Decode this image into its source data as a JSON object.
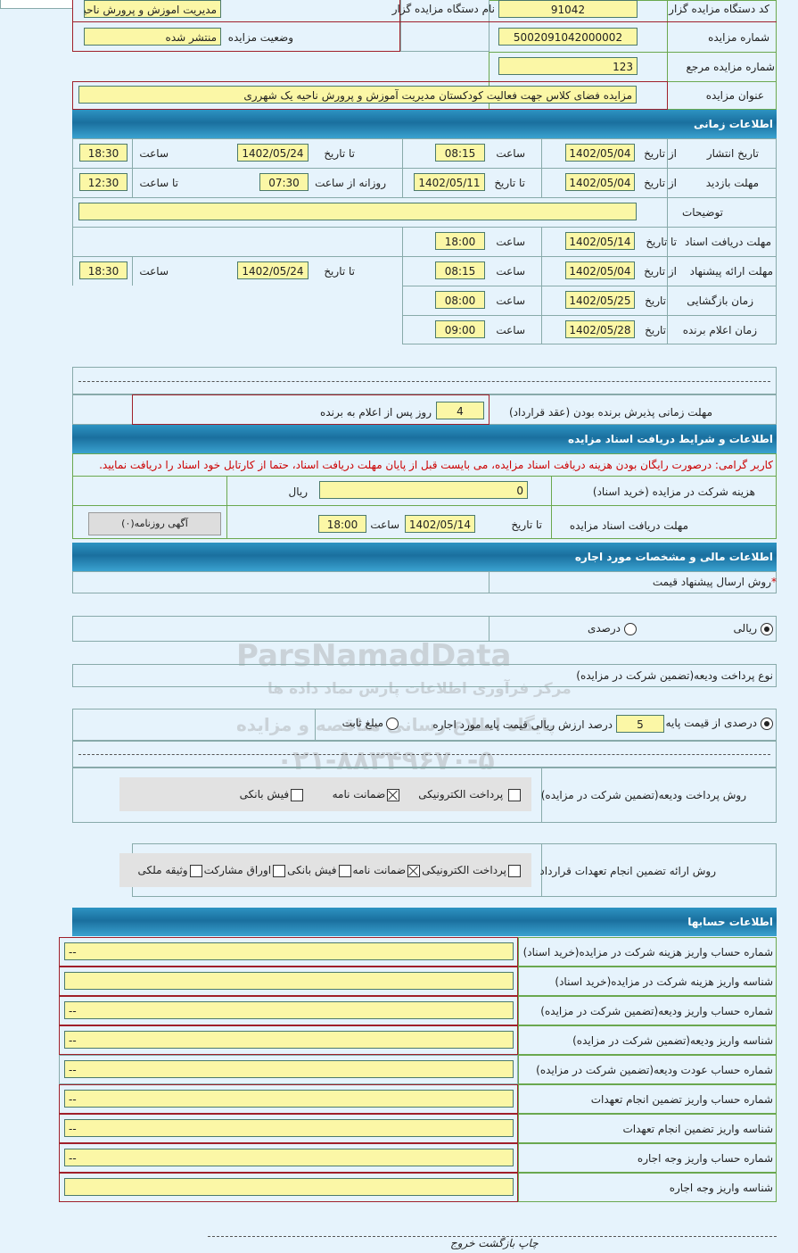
{
  "general": {
    "org_code_label": "کد دستگاه مزایده گزار",
    "org_code": "91042",
    "org_name_label": "نام دستگاه مزایده گزار",
    "org_name": "مدیریت اموزش و پرورش ناحیه",
    "auction_no_label": "شماره مزایده",
    "auction_no": "5002091042000002",
    "status_label": "وضعیت مزایده",
    "status": "منتشر شده",
    "ref_no_label": "شماره مزایده مرجع",
    "ref_no": "123",
    "title_label": "عنوان مزایده",
    "title": "مزایده فضای کلاس جهت فعالیت کودکستان مدیریت آموزش و پرورش ناحیه یک شهرری"
  },
  "time": {
    "header": "اطلاعات زمانی",
    "publish": {
      "label": "تاریخ انتشار",
      "from_label": "از تاریخ",
      "from": "1402/05/04",
      "time_label": "ساعت",
      "time": "08:15",
      "to_label": "تا تاریخ",
      "to": "1402/05/24",
      "time2_label": "ساعت",
      "time2": "18:30"
    },
    "visit": {
      "label": "مهلت بازدید",
      "from_label": "از تاریخ",
      "from": "1402/05/04",
      "to_label": "تا تاریخ",
      "to": "1402/05/11",
      "daily_label": "روزانه از ساعت",
      "daily": "07:30",
      "until_label": "تا ساعت",
      "until": "12:30"
    },
    "notes_label": "توضیحات",
    "notes": "",
    "docs": {
      "label": "مهلت دریافت اسناد",
      "to_label": "تا تاریخ",
      "to": "1402/05/14",
      "time_label": "ساعت",
      "time": "18:00"
    },
    "offer": {
      "label": "مهلت ارائه پیشنهاد",
      "from_label": "از تاریخ",
      "from": "1402/05/04",
      "time_label": "ساعت",
      "time": "08:15",
      "to_label": "تا تاریخ",
      "to": "1402/05/24",
      "time2_label": "ساعت",
      "time2": "18:30"
    },
    "opening": {
      "label": "زمان بازگشایی",
      "date_label": "تاریخ",
      "date": "1402/05/25",
      "time_label": "ساعت",
      "time": "08:00"
    },
    "winner": {
      "label": "زمان اعلام برنده",
      "date_label": "تاریخ",
      "date": "1402/05/28",
      "time_label": "ساعت",
      "time": "09:00"
    },
    "accept_label": "مهلت زمانی پذیرش برنده بودن (عقد قرارداد)",
    "accept_days": "4",
    "accept_suffix": "روز پس از اعلام به برنده"
  },
  "docs_info": {
    "header": "اطلاعات و شرایط دریافت اسناد مزایده",
    "notice": "کاربر گرامی: درصورت رایگان بودن هزینه دریافت اسناد مزایده، می بایست قبل از پایان مهلت دریافت اسناد، حتما از کارتابل خود اسناد را دریافت نمایید.",
    "fee_label": "هزینه شرکت در مزایده (خرید اسناد)",
    "fee": "0",
    "fee_unit": "ریال",
    "deadline_label": "مهلت دریافت اسناد مزایده",
    "to_label": "تا تاریخ",
    "to": "1402/05/14",
    "time_label": "ساعت",
    "time": "18:00",
    "newspaper_button": "آگهی روزنامه(۰)"
  },
  "finance": {
    "header": "اطلاعات مالی و مشخصات مورد اجاره",
    "method_label": "روش ارسال پیشنهاد قیمت",
    "required_mark": "*",
    "rial_label": "ریالی",
    "percent_label": "درصدی",
    "deposit_type_label": "نوع پرداخت ودیعه(تضمین شرکت در مزایده)",
    "deposit_percent_label": "درصدی از قیمت پایه",
    "deposit_percent": "5",
    "deposit_percent_suffix": "درصد ارزش ریالی قیمت پایه مورد اجاره",
    "fixed_label": "مبلغ ثابت",
    "deposit_methods_label": "روش پرداخت ودیعه(تضمین شرکت در مزایده)",
    "deposit_methods": [
      {
        "label": "پرداخت الکترونیکی",
        "checked": false
      },
      {
        "label": "ضمانت نامه",
        "checked": true
      },
      {
        "label": "فیش بانکی",
        "checked": false
      }
    ],
    "guarantee_label": "روش ارائه تضمین انجام تعهدات قرارداد",
    "guarantee_methods": [
      {
        "label": "پرداخت الکترونیکی",
        "checked": false
      },
      {
        "label": "ضمانت نامه",
        "checked": true
      },
      {
        "label": "فیش بانکی",
        "checked": false
      },
      {
        "label": "اوراق مشارکت",
        "checked": false
      },
      {
        "label": "وثیقه ملکی",
        "checked": false
      }
    ]
  },
  "accounts": {
    "header": "اطلاعات حسابها",
    "rows": [
      {
        "label": "شماره حساب واریز هزینه شرکت در مزایده(خرید اسناد)",
        "value": "--"
      },
      {
        "label": "شناسه واریز هزینه شرکت در مزایده(خرید اسناد)",
        "value": ""
      },
      {
        "label": "شماره حساب واریز ودیعه(تضمین شرکت در مزایده)",
        "value": "--"
      },
      {
        "label": "شناسه واریز ودیعه(تضمین شرکت در مزایده)",
        "value": "--"
      },
      {
        "label": "شماره حساب عودت ودیعه(تضمین شرکت در مزایده)",
        "value": "--"
      },
      {
        "label": "شماره حساب واریز تضمین انجام تعهدات",
        "value": "--"
      },
      {
        "label": "شناسه واریز تضمین انجام تعهدات",
        "value": "--"
      },
      {
        "label": "شماره حساب واریز وجه اجاره",
        "value": "--"
      },
      {
        "label": "شناسه واریز وجه اجاره",
        "value": ""
      }
    ]
  },
  "footer": {
    "print": "چاپ",
    "back": "بازگشت",
    "exit": "خروج"
  },
  "watermark": {
    "text1": "ParsNamadData",
    "text2": "مرکز فرآوری اطلاعات پارس نماد داده ها",
    "text3": "پایگاه اطلاع رسانی مناقصه و مزایده",
    "phone": "۰۲۱-۸۸۳۴۹۶۷۰-۵"
  }
}
